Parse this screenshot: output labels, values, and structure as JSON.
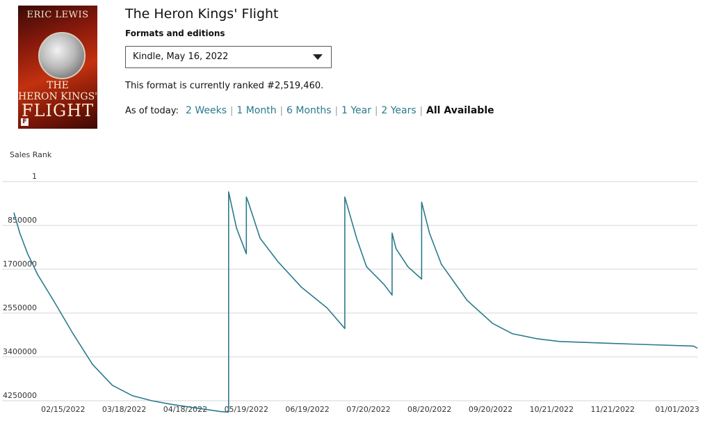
{
  "book": {
    "title": "The Heron Kings' Flight",
    "cover": {
      "author": "ERIC LEWIS",
      "title_line1": "THE",
      "title_line2": "HERON KINGS'",
      "title_line3": "FLIGHT"
    }
  },
  "formats": {
    "label": "Formats and editions",
    "selected": "Kindle, May 16, 2022"
  },
  "rank_text": "This format is currently ranked #2,519,460.",
  "ranges": {
    "label": "As of today:",
    "items": [
      {
        "label": "2 Weeks",
        "active": false
      },
      {
        "label": "1 Month",
        "active": false
      },
      {
        "label": "6 Months",
        "active": false
      },
      {
        "label": "1 Year",
        "active": false
      },
      {
        "label": "2 Years",
        "active": false
      },
      {
        "label": "All Available",
        "active": true
      }
    ]
  },
  "colors": {
    "line": "#2a7a8c",
    "link": "#2a7a8c",
    "grid": "#d5d5d5"
  },
  "chart_data": {
    "type": "line",
    "title": "",
    "ylabel": "Sales Rank",
    "y_inverted": true,
    "ylim": [
      1,
      4250000
    ],
    "yticks": [
      1,
      850000,
      1700000,
      2550000,
      3400000,
      4250000
    ],
    "ytick_labels": [
      "1",
      "850000",
      "1700000",
      "2550000",
      "3400000",
      "4250000"
    ],
    "xlim": [
      "2022-01-15",
      "2023-01-03"
    ],
    "xticks": [
      "2022-02-15",
      "2022-03-18",
      "2022-04-18",
      "2022-05-19",
      "2022-06-19",
      "2022-07-20",
      "2022-08-20",
      "2022-09-20",
      "2022-10-21",
      "2022-11-21",
      "2023-01-01"
    ],
    "xtick_labels": [
      "02/15/2022",
      "03/18/2022",
      "04/18/2022",
      "05/19/2022",
      "06/19/2022",
      "07/20/2022",
      "08/20/2022",
      "09/20/2022",
      "10/21/2022",
      "11/21/2022",
      "01/01/2023"
    ],
    "grid": true,
    "series": [
      {
        "x": [
          "2022-01-21",
          "2022-01-24",
          "2022-01-28",
          "2022-02-02",
          "2022-02-10",
          "2022-02-20",
          "2022-03-02",
          "2022-03-12",
          "2022-03-22",
          "2022-04-01",
          "2022-04-11",
          "2022-04-25",
          "2022-05-06",
          "2022-05-10",
          "2022-05-10",
          "2022-05-14",
          "2022-05-19",
          "2022-05-19",
          "2022-05-20",
          "2022-05-26",
          "2022-06-04",
          "2022-06-16",
          "2022-06-29",
          "2022-07-08",
          "2022-07-08",
          "2022-07-14",
          "2022-07-19",
          "2022-07-28",
          "2022-08-01",
          "2022-08-01",
          "2022-08-03",
          "2022-08-09",
          "2022-08-16",
          "2022-08-16",
          "2022-08-20",
          "2022-08-26",
          "2022-09-08",
          "2022-09-21",
          "2022-10-01",
          "2022-10-14",
          "2022-10-25",
          "2022-11-30",
          "2023-01-01",
          "2023-01-03"
        ],
        "y": [
          600000,
          1000000,
          1400000,
          1800000,
          2300000,
          2950000,
          3550000,
          3950000,
          4150000,
          4250000,
          4320000,
          4400000,
          4460000,
          4470000,
          200000,
          900000,
          1400000,
          300000,
          400000,
          1100000,
          1550000,
          2050000,
          2450000,
          2850000,
          300000,
          1100000,
          1650000,
          2000000,
          2200000,
          1000000,
          1300000,
          1650000,
          1890000,
          400000,
          1000000,
          1600000,
          2300000,
          2750000,
          2950000,
          3050000,
          3100000,
          3150000,
          3190000,
          3230000
        ]
      }
    ]
  }
}
